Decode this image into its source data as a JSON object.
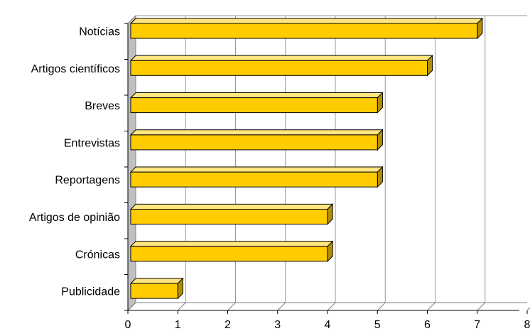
{
  "chart_data": {
    "type": "bar",
    "orientation": "horizontal",
    "style": "3d",
    "title": "",
    "xlabel": "",
    "ylabel": "",
    "categories": [
      "Notícias",
      "Artigos científicos",
      "Breves",
      "Entrevistas",
      "Reportagens",
      "Artigos de opinião",
      "Crónicas",
      "Publicidade"
    ],
    "values": [
      7,
      6,
      5,
      5,
      5,
      4,
      4,
      1
    ],
    "xlim": [
      0,
      8
    ],
    "x_ticks": [
      "0",
      "1",
      "2",
      "3",
      "4",
      "5",
      "6",
      "7",
      "8"
    ],
    "grid": true,
    "legend": "none",
    "colors": {
      "bar_front": "#FFCC00",
      "bar_top": "#FFE680",
      "bar_side": "#B38F00",
      "bar_outline": "#000000",
      "wall": "#C0C0C0",
      "gridline": "#999999"
    }
  }
}
